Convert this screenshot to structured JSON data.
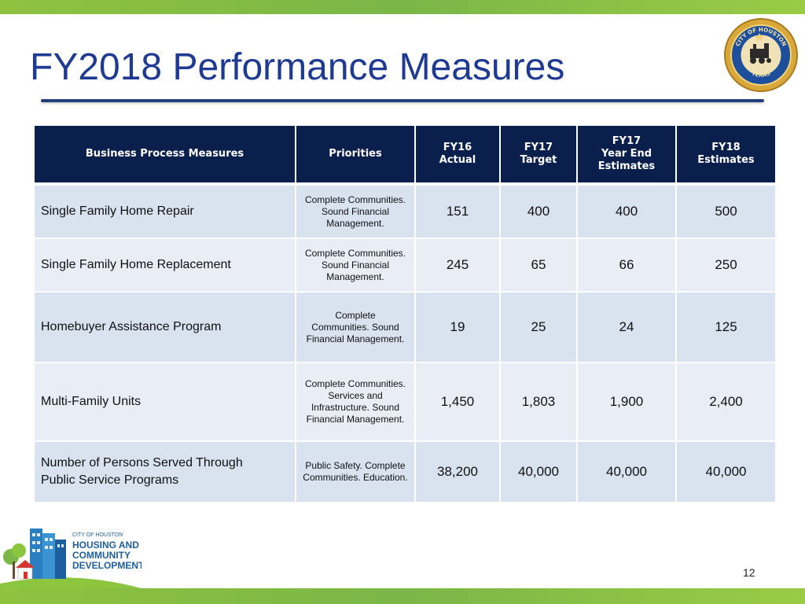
{
  "slide": {
    "title": "FY2018 Performance Measures",
    "page_number": "12"
  },
  "table": {
    "headers": {
      "measures": "Business Process Measures",
      "priorities": "Priorities",
      "fy16": [
        "FY16",
        "Actual"
      ],
      "fy17_target": [
        "FY17",
        "Target"
      ],
      "fy17_ye": [
        "FY17",
        "Year End",
        "Estimates"
      ],
      "fy18": [
        "FY18",
        "Estimates"
      ]
    },
    "rows": [
      {
        "measure": [
          "Single Family Home Repair"
        ],
        "priorities": [
          "Complete Communities.",
          "Sound Financial",
          "Management."
        ],
        "fy16": "151",
        "fy17_target": "400",
        "fy17_ye": "400",
        "fy18": "500"
      },
      {
        "measure": [
          "Single Family Home Replacement"
        ],
        "priorities": [
          "Complete Communities.",
          "Sound Financial",
          "Management."
        ],
        "fy16": "245",
        "fy17_target": "65",
        "fy17_ye": "66",
        "fy18": "250"
      },
      {
        "measure": [
          "Homebuyer Assistance Program"
        ],
        "priorities": [
          "Complete",
          "Communities. Sound",
          "Financial Management."
        ],
        "fy16": "19",
        "fy17_target": "25",
        "fy17_ye": "24",
        "fy18": "125"
      },
      {
        "measure": [
          "Multi-Family Units"
        ],
        "priorities": [
          "Complete Communities.",
          "Services and",
          "Infrastructure. Sound",
          "Financial Management."
        ],
        "fy16": "1,450",
        "fy17_target": "1,803",
        "fy17_ye": "1,900",
        "fy18": "2,400"
      },
      {
        "measure": [
          "Number of Persons Served Through",
          "Public Service Programs"
        ],
        "priorities": [
          "Public Safety. Complete",
          "Communities. Education."
        ],
        "fy16": "38,200",
        "fy17_target": "40,000",
        "fy17_ye": "40,000",
        "fy18": "40,000"
      }
    ]
  },
  "seal": {
    "top_text": "CITY OF HOUSTON",
    "bottom_text": "TEXAS"
  },
  "hcd_logo": {
    "line1": "CITY OF HOUSTON",
    "line2": "HOUSING AND",
    "line3": "COMMUNITY",
    "line4": "DEVELOPMENT"
  },
  "colors": {
    "header_bg": "#0b1f4d",
    "title": "#1f3a93",
    "accent_green": "#7ab648"
  }
}
